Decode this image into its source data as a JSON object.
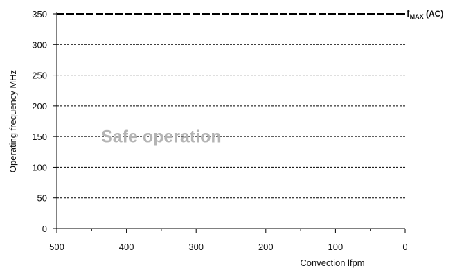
{
  "chart_data": {
    "type": "line",
    "title": "",
    "xlabel": "Convection lfpm",
    "ylabel": "Operating frequency MHz",
    "x_reversed": true,
    "xlim": [
      500,
      0
    ],
    "ylim": [
      0,
      350
    ],
    "xticks": [
      500,
      400,
      300,
      200,
      100,
      0
    ],
    "yticks": [
      0,
      50,
      100,
      150,
      200,
      250,
      300,
      350
    ],
    "grid": {
      "horizontal": true,
      "vertical": false
    },
    "series": [
      {
        "name": "fMAX (AC)",
        "style": "dashed",
        "x": [
          500,
          0
        ],
        "y": [
          350,
          350
        ]
      }
    ],
    "series_label": {
      "main": "f",
      "sub": "MAX",
      "suffix": " (AC)"
    },
    "annotations": [
      {
        "text": "Safe operation",
        "x": 350,
        "y": 125
      }
    ]
  }
}
